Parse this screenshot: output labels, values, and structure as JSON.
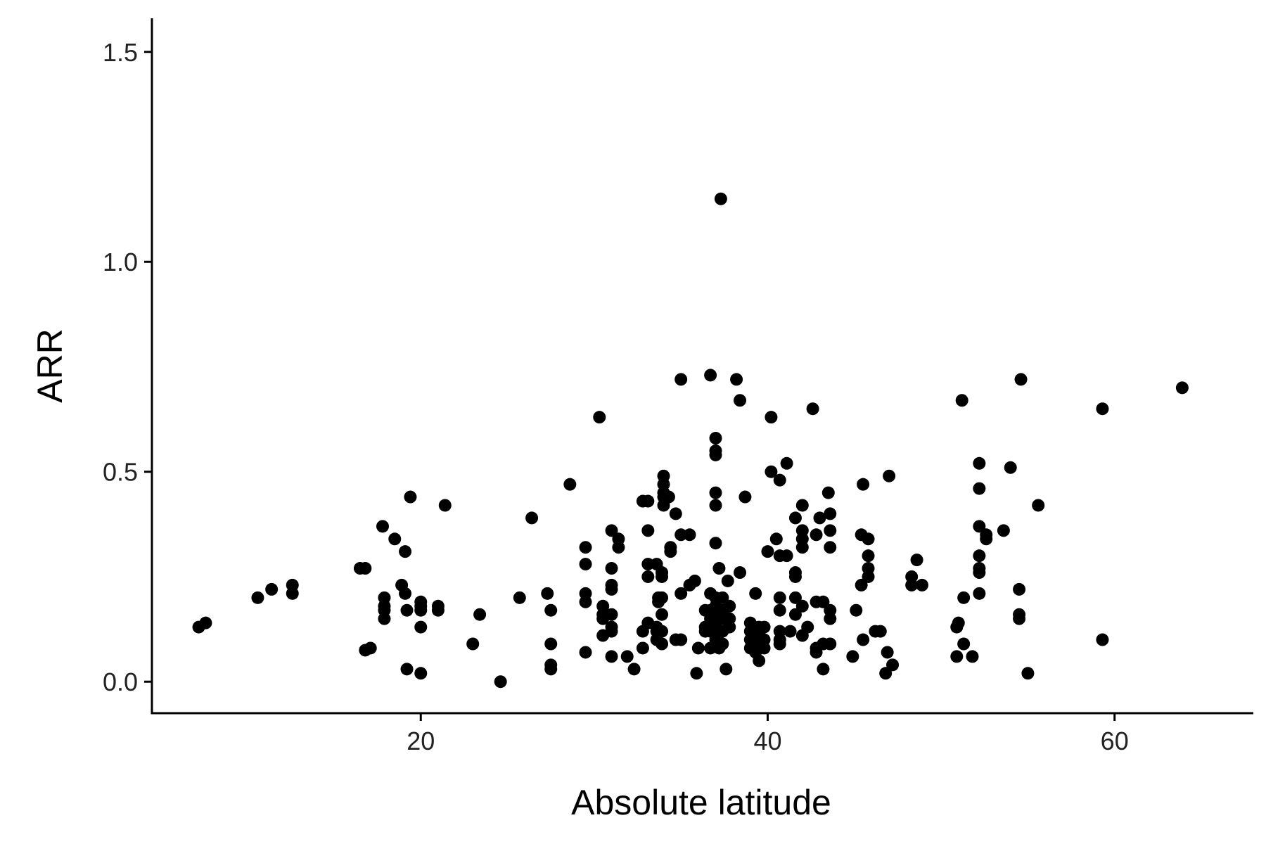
{
  "chart_data": {
    "type": "scatter",
    "title": "",
    "xlabel": "Absolute latitude",
    "ylabel": "ARR",
    "xlim": [
      4.5,
      68
    ],
    "ylim": [
      -0.075,
      1.58
    ],
    "xticks": [
      {
        "value": 20,
        "label": "20"
      },
      {
        "value": 40,
        "label": "40"
      },
      {
        "value": 60,
        "label": "60"
      }
    ],
    "yticks": [
      {
        "value": 0.0,
        "label": "0.0"
      },
      {
        "value": 0.5,
        "label": "0.5"
      },
      {
        "value": 1.0,
        "label": "1.0"
      },
      {
        "value": 1.5,
        "label": "1.5"
      }
    ],
    "grid": false,
    "legend": "none",
    "point_color": "#000000",
    "points": [
      [
        7.2,
        0.13
      ],
      [
        7.6,
        0.14
      ],
      [
        10.6,
        0.2
      ],
      [
        11.4,
        0.22
      ],
      [
        12.6,
        0.23
      ],
      [
        12.6,
        0.21
      ],
      [
        16.5,
        0.27
      ],
      [
        16.8,
        0.27
      ],
      [
        16.8,
        0.075
      ],
      [
        17.1,
        0.08
      ],
      [
        17.8,
        0.37
      ],
      [
        17.9,
        0.2
      ],
      [
        17.9,
        0.18
      ],
      [
        17.9,
        0.17
      ],
      [
        17.9,
        0.15
      ],
      [
        18.5,
        0.34
      ],
      [
        18.9,
        0.23
      ],
      [
        19.1,
        0.31
      ],
      [
        19.1,
        0.21
      ],
      [
        19.2,
        0.17
      ],
      [
        19.2,
        0.03
      ],
      [
        19.4,
        0.44
      ],
      [
        20.0,
        0.19
      ],
      [
        20.0,
        0.18
      ],
      [
        20.0,
        0.17
      ],
      [
        20.0,
        0.13
      ],
      [
        20.0,
        0.02
      ],
      [
        21.0,
        0.18
      ],
      [
        21.0,
        0.17
      ],
      [
        21.4,
        0.42
      ],
      [
        23.0,
        0.09
      ],
      [
        23.4,
        0.16
      ],
      [
        24.6,
        0.0
      ],
      [
        25.7,
        0.2
      ],
      [
        26.4,
        0.39
      ],
      [
        27.3,
        0.21
      ],
      [
        27.5,
        0.17
      ],
      [
        27.5,
        0.09
      ],
      [
        27.5,
        0.04
      ],
      [
        27.5,
        0.03
      ],
      [
        28.6,
        0.47
      ],
      [
        29.5,
        0.32
      ],
      [
        29.5,
        0.28
      ],
      [
        29.5,
        0.21
      ],
      [
        29.5,
        0.19
      ],
      [
        29.5,
        0.07
      ],
      [
        30.3,
        0.63
      ],
      [
        30.5,
        0.18
      ],
      [
        30.5,
        0.16
      ],
      [
        30.5,
        0.15
      ],
      [
        30.5,
        0.11
      ],
      [
        31.0,
        0.36
      ],
      [
        31.0,
        0.27
      ],
      [
        31.0,
        0.23
      ],
      [
        31.0,
        0.22
      ],
      [
        31.0,
        0.16
      ],
      [
        31.0,
        0.13
      ],
      [
        31.0,
        0.12
      ],
      [
        31.0,
        0.06
      ],
      [
        31.4,
        0.34
      ],
      [
        31.4,
        0.32
      ],
      [
        31.9,
        0.06
      ],
      [
        32.3,
        0.03
      ],
      [
        32.8,
        0.43
      ],
      [
        32.8,
        0.12
      ],
      [
        32.8,
        0.08
      ],
      [
        33.1,
        0.43
      ],
      [
        33.1,
        0.36
      ],
      [
        33.1,
        0.28
      ],
      [
        33.1,
        0.25
      ],
      [
        33.1,
        0.14
      ],
      [
        33.6,
        0.28
      ],
      [
        33.6,
        0.13
      ],
      [
        33.6,
        0.12
      ],
      [
        33.6,
        0.1
      ],
      [
        33.7,
        0.2
      ],
      [
        33.7,
        0.19
      ],
      [
        33.9,
        0.26
      ],
      [
        33.9,
        0.25
      ],
      [
        33.9,
        0.2
      ],
      [
        33.9,
        0.16
      ],
      [
        33.9,
        0.12
      ],
      [
        33.9,
        0.09
      ],
      [
        34.0,
        0.49
      ],
      [
        34.0,
        0.47
      ],
      [
        34.0,
        0.45
      ],
      [
        34.0,
        0.44
      ],
      [
        34.0,
        0.42
      ],
      [
        34.3,
        0.44
      ],
      [
        34.4,
        0.32
      ],
      [
        34.4,
        0.31
      ],
      [
        34.7,
        0.4
      ],
      [
        34.7,
        0.1
      ],
      [
        35.0,
        0.72
      ],
      [
        35.0,
        0.35
      ],
      [
        35.0,
        0.21
      ],
      [
        35.0,
        0.1
      ],
      [
        35.5,
        0.35
      ],
      [
        35.5,
        0.23
      ],
      [
        35.8,
        0.24
      ],
      [
        35.9,
        0.02
      ],
      [
        36.0,
        0.08
      ],
      [
        36.4,
        0.17
      ],
      [
        36.4,
        0.13
      ],
      [
        36.4,
        0.12
      ],
      [
        36.7,
        0.73
      ],
      [
        36.7,
        0.21
      ],
      [
        36.7,
        0.17
      ],
      [
        36.7,
        0.15
      ],
      [
        36.7,
        0.12
      ],
      [
        36.7,
        0.08
      ],
      [
        37.0,
        0.58
      ],
      [
        37.0,
        0.55
      ],
      [
        37.0,
        0.54
      ],
      [
        37.0,
        0.45
      ],
      [
        37.0,
        0.42
      ],
      [
        37.0,
        0.33
      ],
      [
        37.0,
        0.2
      ],
      [
        37.0,
        0.18
      ],
      [
        37.0,
        0.16
      ],
      [
        37.0,
        0.14
      ],
      [
        37.0,
        0.12
      ],
      [
        37.0,
        0.1
      ],
      [
        37.2,
        0.27
      ],
      [
        37.2,
        0.08
      ],
      [
        37.3,
        1.15
      ],
      [
        37.4,
        0.2
      ],
      [
        37.4,
        0.17
      ],
      [
        37.4,
        0.15
      ],
      [
        37.4,
        0.12
      ],
      [
        37.4,
        0.09
      ],
      [
        37.6,
        0.03
      ],
      [
        37.7,
        0.24
      ],
      [
        37.8,
        0.18
      ],
      [
        37.8,
        0.15
      ],
      [
        37.8,
        0.13
      ],
      [
        38.2,
        0.72
      ],
      [
        38.4,
        0.26
      ],
      [
        38.4,
        0.67
      ],
      [
        38.7,
        0.44
      ],
      [
        39.0,
        0.14
      ],
      [
        39.0,
        0.12
      ],
      [
        39.0,
        0.1
      ],
      [
        39.0,
        0.08
      ],
      [
        39.3,
        0.21
      ],
      [
        39.3,
        0.12
      ],
      [
        39.3,
        0.09
      ],
      [
        39.3,
        0.07
      ],
      [
        39.5,
        0.13
      ],
      [
        39.5,
        0.11
      ],
      [
        39.5,
        0.09
      ],
      [
        39.5,
        0.05
      ],
      [
        39.8,
        0.13
      ],
      [
        39.8,
        0.1
      ],
      [
        39.8,
        0.08
      ],
      [
        40.0,
        0.31
      ],
      [
        40.2,
        0.63
      ],
      [
        40.2,
        0.5
      ],
      [
        40.5,
        0.34
      ],
      [
        40.7,
        0.48
      ],
      [
        40.7,
        0.3
      ],
      [
        40.7,
        0.2
      ],
      [
        40.7,
        0.17
      ],
      [
        40.7,
        0.12
      ],
      [
        40.7,
        0.1
      ],
      [
        40.7,
        0.09
      ],
      [
        41.1,
        0.52
      ],
      [
        41.1,
        0.3
      ],
      [
        41.3,
        0.12
      ],
      [
        41.6,
        0.39
      ],
      [
        41.6,
        0.26
      ],
      [
        41.6,
        0.25
      ],
      [
        41.6,
        0.2
      ],
      [
        41.6,
        0.16
      ],
      [
        42.0,
        0.42
      ],
      [
        42.0,
        0.36
      ],
      [
        42.0,
        0.34
      ],
      [
        42.0,
        0.32
      ],
      [
        42.0,
        0.18
      ],
      [
        42.0,
        0.11
      ],
      [
        42.3,
        0.13
      ],
      [
        42.6,
        0.65
      ],
      [
        42.8,
        0.35
      ],
      [
        42.8,
        0.19
      ],
      [
        42.8,
        0.08
      ],
      [
        42.8,
        0.07
      ],
      [
        43.0,
        0.39
      ],
      [
        43.2,
        0.19
      ],
      [
        43.2,
        0.09
      ],
      [
        43.2,
        0.03
      ],
      [
        43.5,
        0.45
      ],
      [
        43.6,
        0.4
      ],
      [
        43.6,
        0.36
      ],
      [
        43.6,
        0.32
      ],
      [
        43.6,
        0.17
      ],
      [
        43.6,
        0.15
      ],
      [
        43.6,
        0.09
      ],
      [
        44.9,
        0.06
      ],
      [
        45.1,
        0.17
      ],
      [
        45.4,
        0.35
      ],
      [
        45.4,
        0.23
      ],
      [
        45.5,
        0.47
      ],
      [
        45.5,
        0.1
      ],
      [
        45.8,
        0.34
      ],
      [
        45.8,
        0.3
      ],
      [
        45.8,
        0.27
      ],
      [
        45.8,
        0.25
      ],
      [
        46.2,
        0.12
      ],
      [
        46.5,
        0.12
      ],
      [
        46.8,
        0.02
      ],
      [
        46.9,
        0.07
      ],
      [
        47.0,
        0.49
      ],
      [
        47.2,
        0.04
      ],
      [
        48.3,
        0.25
      ],
      [
        48.3,
        0.23
      ],
      [
        48.6,
        0.29
      ],
      [
        48.9,
        0.23
      ],
      [
        50.9,
        0.13
      ],
      [
        50.9,
        0.06
      ],
      [
        51.0,
        0.14
      ],
      [
        51.2,
        0.67
      ],
      [
        51.3,
        0.2
      ],
      [
        51.3,
        0.09
      ],
      [
        51.8,
        0.06
      ],
      [
        52.2,
        0.52
      ],
      [
        52.2,
        0.46
      ],
      [
        52.2,
        0.37
      ],
      [
        52.2,
        0.3
      ],
      [
        52.2,
        0.26
      ],
      [
        52.2,
        0.27
      ],
      [
        52.2,
        0.21
      ],
      [
        52.6,
        0.35
      ],
      [
        52.6,
        0.34
      ],
      [
        53.6,
        0.36
      ],
      [
        54.0,
        0.51
      ],
      [
        54.5,
        0.22
      ],
      [
        54.5,
        0.16
      ],
      [
        54.5,
        0.15
      ],
      [
        54.6,
        0.72
      ],
      [
        55.0,
        0.02
      ],
      [
        55.6,
        0.42
      ],
      [
        59.3,
        0.65
      ],
      [
        59.3,
        0.1
      ],
      [
        63.9,
        0.7
      ]
    ]
  }
}
